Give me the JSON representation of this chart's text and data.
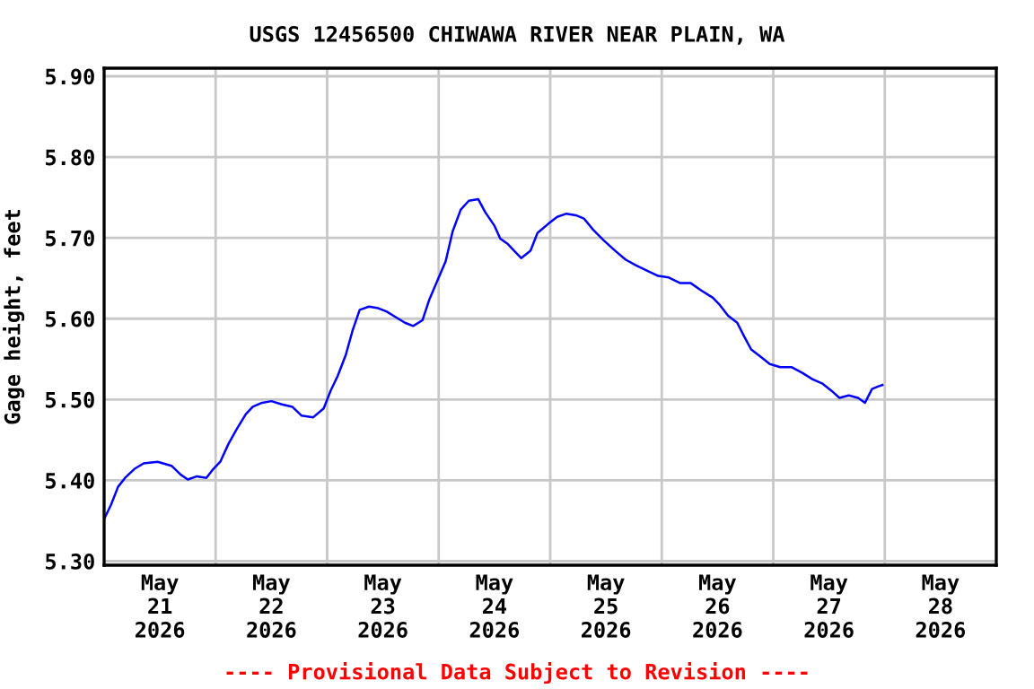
{
  "chart_data": {
    "type": "line",
    "title": "USGS 12456500 CHIWAWA RIVER NEAR PLAIN, WA",
    "ylabel": "Gage height, feet",
    "annotations": [
      "---- Provisional Data Subject to Revision ----"
    ],
    "x": [
      "2026-05-21T00:00",
      "2026-05-21T01:30",
      "2026-05-21T03:00",
      "2026-05-21T04:30",
      "2026-05-21T06:30",
      "2026-05-21T08:30",
      "2026-05-21T11:30",
      "2026-05-21T14:30",
      "2026-05-21T16:30",
      "2026-05-21T18:00",
      "2026-05-21T20:00",
      "2026-05-21T22:00",
      "2026-05-21T23:30",
      "2026-05-22T01:00",
      "2026-05-22T02:45",
      "2026-05-22T04:30",
      "2026-05-22T06:30",
      "2026-05-22T08:00",
      "2026-05-22T10:00",
      "2026-05-22T12:00",
      "2026-05-22T14:15",
      "2026-05-22T16:30",
      "2026-05-22T18:30",
      "2026-05-22T21:00",
      "2026-05-22T23:15",
      "2026-05-23T00:45",
      "2026-05-23T02:15",
      "2026-05-23T04:00",
      "2026-05-23T05:30",
      "2026-05-23T07:00",
      "2026-05-23T09:00",
      "2026-05-23T11:00",
      "2026-05-23T12:45",
      "2026-05-23T14:45",
      "2026-05-23T16:45",
      "2026-05-23T18:30",
      "2026-05-23T20:30",
      "2026-05-23T22:00",
      "2026-05-23T23:30",
      "2026-05-24T01:30",
      "2026-05-24T03:00",
      "2026-05-24T04:45",
      "2026-05-24T06:30",
      "2026-05-24T08:30",
      "2026-05-24T10:00",
      "2026-05-24T12:00",
      "2026-05-24T13:15",
      "2026-05-24T14:45",
      "2026-05-24T16:15",
      "2026-05-24T17:45",
      "2026-05-24T19:45",
      "2026-05-24T21:15",
      "2026-05-24T23:30",
      "2026-05-25T01:30",
      "2026-05-25T03:30",
      "2026-05-25T05:30",
      "2026-05-25T07:15",
      "2026-05-25T09:15",
      "2026-05-25T11:30",
      "2026-05-25T14:00",
      "2026-05-25T16:15",
      "2026-05-25T18:30",
      "2026-05-25T21:00",
      "2026-05-25T23:15",
      "2026-05-26T01:30",
      "2026-05-26T04:00",
      "2026-05-26T06:15",
      "2026-05-26T08:30",
      "2026-05-26T11:00",
      "2026-05-26T12:30",
      "2026-05-26T14:15",
      "2026-05-26T16:15",
      "2026-05-26T17:45",
      "2026-05-26T19:15",
      "2026-05-26T21:15",
      "2026-05-26T23:15",
      "2026-05-27T01:30",
      "2026-05-27T04:00",
      "2026-05-27T06:15",
      "2026-05-27T08:30",
      "2026-05-27T10:30",
      "2026-05-27T12:30",
      "2026-05-27T14:15",
      "2026-05-27T16:15",
      "2026-05-27T18:15",
      "2026-05-27T19:45",
      "2026-05-27T21:15",
      "2026-05-27T22:30",
      "2026-05-27T23:30"
    ],
    "series": [
      {
        "color": "#0000ff",
        "values": [
          5.352,
          5.37,
          5.392,
          5.403,
          5.414,
          5.421,
          5.423,
          5.418,
          5.407,
          5.401,
          5.405,
          5.403,
          5.414,
          5.423,
          5.445,
          5.463,
          5.482,
          5.491,
          5.496,
          5.498,
          5.494,
          5.491,
          5.48,
          5.478,
          5.489,
          5.511,
          5.529,
          5.555,
          5.586,
          5.611,
          5.615,
          5.613,
          5.609,
          5.602,
          5.595,
          5.591,
          5.598,
          5.624,
          5.644,
          5.671,
          5.708,
          5.735,
          5.746,
          5.748,
          5.732,
          5.715,
          5.699,
          5.693,
          5.684,
          5.675,
          5.684,
          5.706,
          5.717,
          5.726,
          5.73,
          5.728,
          5.724,
          5.71,
          5.697,
          5.684,
          5.673,
          5.666,
          5.659,
          5.653,
          5.651,
          5.644,
          5.644,
          5.635,
          5.626,
          5.617,
          5.604,
          5.595,
          5.578,
          5.562,
          5.553,
          5.544,
          5.54,
          5.54,
          5.533,
          5.525,
          5.52,
          5.511,
          5.502,
          5.505,
          5.502,
          5.496,
          5.513,
          5.516,
          5.518
        ]
      }
    ],
    "xlim": [
      "2026-05-21T00:00",
      "2026-05-29T00:00"
    ],
    "xticks": [
      {
        "value": "2026-05-21T12:00",
        "label": "May\n21\n2026"
      },
      {
        "value": "2026-05-22T00:00",
        "label": null
      },
      {
        "value": "2026-05-22T12:00",
        "label": "May\n22\n2026"
      },
      {
        "value": "2026-05-23T00:00",
        "label": null
      },
      {
        "value": "2026-05-23T12:00",
        "label": "May\n23\n2026"
      },
      {
        "value": "2026-05-24T00:00",
        "label": null
      },
      {
        "value": "2026-05-24T12:00",
        "label": "May\n24\n2026"
      },
      {
        "value": "2026-05-25T00:00",
        "label": null
      },
      {
        "value": "2026-05-25T12:00",
        "label": "May\n25\n2026"
      },
      {
        "value": "2026-05-26T00:00",
        "label": null
      },
      {
        "value": "2026-05-26T12:00",
        "label": "May\n26\n2026"
      },
      {
        "value": "2026-05-27T00:00",
        "label": null
      },
      {
        "value": "2026-05-27T12:00",
        "label": "May\n27\n2026"
      },
      {
        "value": "2026-05-28T00:00",
        "label": null
      },
      {
        "value": "2026-05-28T12:00",
        "label": "May\n28\n2026"
      }
    ],
    "ylim": [
      5.295,
      5.91
    ],
    "yticks": [
      {
        "value": 5.3,
        "label": "5.30"
      },
      {
        "value": 5.4,
        "label": "5.40"
      },
      {
        "value": 5.5,
        "label": "5.50"
      },
      {
        "value": 5.6,
        "label": "5.60"
      },
      {
        "value": 5.7,
        "label": "5.70"
      },
      {
        "value": 5.8,
        "label": "5.80"
      },
      {
        "value": 5.9,
        "label": "5.90"
      }
    ],
    "grid": true,
    "line_style": "solid"
  }
}
